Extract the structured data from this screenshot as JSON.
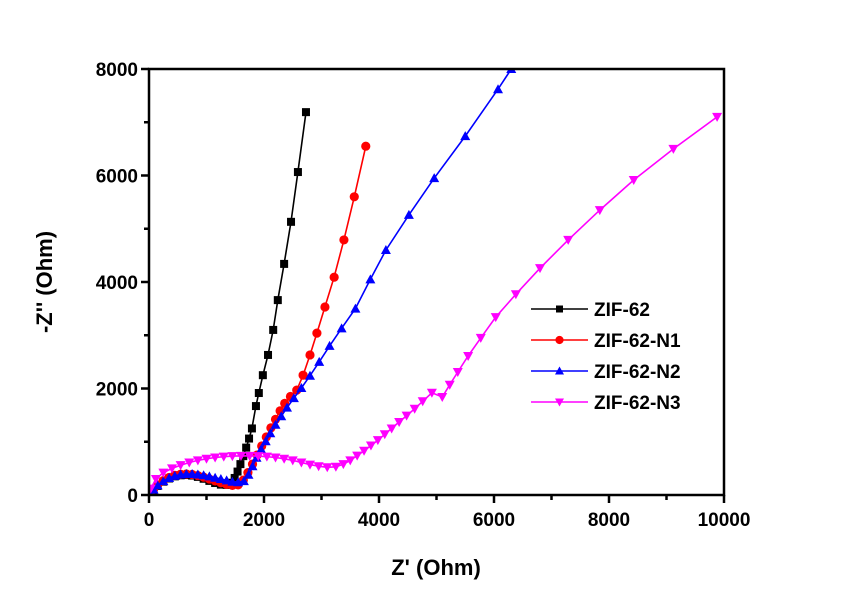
{
  "chart_data": {
    "type": "line",
    "title": "",
    "xlabel": "Z' (Ohm)",
    "ylabel": "-Z'' (Ohm)",
    "xlim": [
      0,
      10000
    ],
    "ylim": [
      0,
      8000
    ],
    "xticks": [
      0,
      2000,
      4000,
      6000,
      8000,
      10000
    ],
    "xtick_labels": [
      "0",
      "2000",
      "4000",
      "6000",
      "8000",
      "10000"
    ],
    "yticks": [
      0,
      2000,
      4000,
      6000,
      8000
    ],
    "ytick_labels": [
      "0",
      "2000",
      "4000",
      "6000",
      "8000"
    ],
    "grid": false,
    "legend_position": "center-right",
    "series": [
      {
        "name": "ZIF-62",
        "color": "#000000",
        "marker": "square",
        "x": [
          20,
          80,
          150,
          250,
          350,
          450,
          550,
          650,
          750,
          850,
          950,
          1050,
          1150,
          1250,
          1350,
          1430,
          1490,
          1540,
          1590,
          1640,
          1690,
          1740,
          1790,
          1860,
          1910,
          1980,
          2070,
          2160,
          2240,
          2350,
          2470,
          2590,
          2730
        ],
        "y": [
          20,
          90,
          170,
          250,
          310,
          350,
          370,
          375,
          365,
          340,
          305,
          265,
          225,
          195,
          190,
          230,
          320,
          440,
          580,
          730,
          890,
          1060,
          1250,
          1670,
          1915,
          2250,
          2630,
          3100,
          3660,
          4340,
          5130,
          6065,
          7190
        ]
      },
      {
        "name": "ZIF-62-N1",
        "color": "#ff0000",
        "marker": "circle",
        "x": [
          20,
          80,
          150,
          250,
          350,
          450,
          550,
          650,
          750,
          850,
          950,
          1050,
          1150,
          1250,
          1350,
          1450,
          1550,
          1640,
          1720,
          1800,
          1880,
          1960,
          2040,
          2120,
          2200,
          2280,
          2360,
          2460,
          2570,
          2680,
          2800,
          2920,
          3060,
          3220,
          3390,
          3570,
          3770
        ],
        "y": [
          30,
          110,
          190,
          270,
          330,
          370,
          390,
          395,
          385,
          365,
          335,
          300,
          265,
          230,
          200,
          180,
          190,
          280,
          420,
          580,
          750,
          920,
          1090,
          1260,
          1420,
          1580,
          1720,
          1850,
          1970,
          2250,
          2630,
          3040,
          3530,
          4090,
          4790,
          5600,
          6550
        ]
      },
      {
        "name": "ZIF-62-N2",
        "color": "#0000ff",
        "marker": "triangle-up",
        "x": [
          20,
          80,
          150,
          250,
          350,
          450,
          550,
          650,
          750,
          850,
          950,
          1050,
          1150,
          1250,
          1350,
          1450,
          1550,
          1650,
          1730,
          1800,
          1870,
          1950,
          2030,
          2110,
          2200,
          2300,
          2400,
          2520,
          2650,
          2800,
          2960,
          3140,
          3350,
          3590,
          3850,
          4120,
          4520,
          4960,
          5500,
          6070,
          6300
        ],
        "y": [
          20,
          100,
          180,
          260,
          320,
          360,
          385,
          395,
          395,
          385,
          370,
          350,
          325,
          300,
          275,
          250,
          240,
          260,
          380,
          540,
          700,
          860,
          1010,
          1160,
          1320,
          1480,
          1640,
          1820,
          2010,
          2240,
          2500,
          2800,
          3130,
          3500,
          4050,
          4600,
          5260,
          5950,
          6740,
          7620,
          8000
        ]
      },
      {
        "name": "ZIF-62-N3",
        "color": "#ff00ff",
        "marker": "triangle-down",
        "x": [
          30,
          120,
          250,
          400,
          550,
          700,
          850,
          1000,
          1150,
          1300,
          1450,
          1600,
          1750,
          1900,
          2050,
          2200,
          2350,
          2500,
          2650,
          2800,
          2950,
          3100,
          3250,
          3380,
          3500,
          3620,
          3740,
          3860,
          3980,
          4100,
          4220,
          4350,
          4480,
          4620,
          4760,
          4920,
          5100,
          5230,
          5370,
          5550,
          5770,
          6030,
          6380,
          6800,
          7290,
          7840,
          8430,
          9120,
          9880
        ],
        "y": [
          120,
          300,
          420,
          500,
          560,
          610,
          650,
          680,
          705,
          720,
          730,
          735,
          735,
          730,
          720,
          705,
          680,
          650,
          610,
          570,
          540,
          520,
          530,
          580,
          650,
          740,
          830,
          930,
          1030,
          1140,
          1250,
          1370,
          1490,
          1620,
          1760,
          1920,
          1840,
          2070,
          2310,
          2610,
          2950,
          3340,
          3770,
          4260,
          4790,
          5350,
          5915,
          6500,
          7100
        ]
      }
    ]
  }
}
